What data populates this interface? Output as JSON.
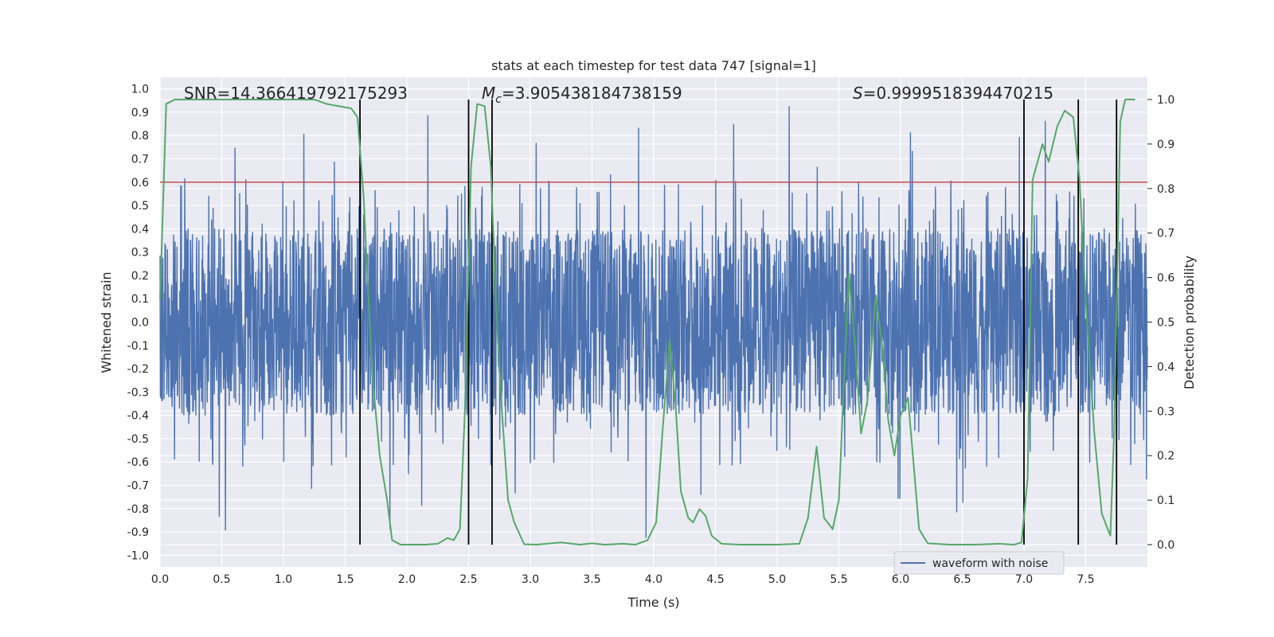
{
  "chart_data": {
    "type": "line",
    "title": "stats at each timestep for test data 747 [signal=1]",
    "xlabel": "Time (s)",
    "ylabel": "Whitened strain",
    "y2label": "Detection probability",
    "xlim": [
      0.0,
      8.0
    ],
    "ylim": [
      -1.05,
      1.05
    ],
    "y2lim": [
      -0.05,
      1.05
    ],
    "x_ticks": [
      "0.0",
      "0.5",
      "1.0",
      "1.5",
      "2.0",
      "2.5",
      "3.0",
      "3.5",
      "4.0",
      "4.5",
      "5.0",
      "5.5",
      "6.0",
      "6.5",
      "7.0",
      "7.5"
    ],
    "y_ticks": [
      "1.0",
      "0.9",
      "0.8",
      "0.7",
      "0.6",
      "0.5",
      "0.4",
      "0.3",
      "0.2",
      "0.1",
      "0.0",
      "-0.1",
      "-0.2",
      "-0.3",
      "-0.4",
      "-0.5",
      "-0.6",
      "-0.7",
      "-0.8",
      "-0.9",
      "-1.0"
    ],
    "y2_ticks": [
      "1.0",
      "0.9",
      "0.8",
      "0.7",
      "0.6",
      "0.5",
      "0.4",
      "0.3",
      "0.2",
      "0.1",
      "0.0"
    ],
    "annotations": {
      "snr": "SNR=14.366419792175293",
      "mc_symbol": "M",
      "mc_sub": "c",
      "mc_value": "=3.905438184738159",
      "s_symbol": "S",
      "s_value": "=0.9999518394470215"
    },
    "threshold": {
      "value": 0.6,
      "color": "#c44e52"
    },
    "vertical_markers_x": [
      1.62,
      2.5,
      2.69,
      7.0,
      7.44,
      7.75
    ],
    "grid": true,
    "legend_position": "lower-right",
    "series": [
      {
        "name": "waveform with noise",
        "color": "#4c72b0",
        "axis": "left",
        "style": "dense oscillating noise",
        "x_start": 0.0,
        "x_end": 8.0,
        "envelope_positive": 0.4,
        "envelope_negative": -0.4,
        "peak_max": 0.93,
        "peak_min": -0.95
      },
      {
        "color": "#55a868",
        "axis": "right",
        "points": [
          [
            0.0,
            0.55
          ],
          [
            0.05,
            0.99
          ],
          [
            0.12,
            1.0
          ],
          [
            0.3,
            1.0
          ],
          [
            0.5,
            1.0
          ],
          [
            0.7,
            1.0
          ],
          [
            0.9,
            1.0
          ],
          [
            1.1,
            1.0
          ],
          [
            1.25,
            1.0
          ],
          [
            1.35,
            0.99
          ],
          [
            1.45,
            0.985
          ],
          [
            1.55,
            0.98
          ],
          [
            1.6,
            0.96
          ],
          [
            1.65,
            0.78
          ],
          [
            1.68,
            0.6
          ],
          [
            1.72,
            0.38
          ],
          [
            1.78,
            0.2
          ],
          [
            1.84,
            0.1
          ],
          [
            1.88,
            0.01
          ],
          [
            1.95,
            0.0
          ],
          [
            2.05,
            0.0
          ],
          [
            2.15,
            0.0
          ],
          [
            2.25,
            0.002
          ],
          [
            2.33,
            0.015
          ],
          [
            2.38,
            0.01
          ],
          [
            2.43,
            0.035
          ],
          [
            2.47,
            0.3
          ],
          [
            2.52,
            0.85
          ],
          [
            2.57,
            0.99
          ],
          [
            2.63,
            0.985
          ],
          [
            2.68,
            0.85
          ],
          [
            2.72,
            0.55
          ],
          [
            2.77,
            0.3
          ],
          [
            2.82,
            0.1
          ],
          [
            2.87,
            0.05
          ],
          [
            2.95,
            0.001
          ],
          [
            3.05,
            0.0
          ],
          [
            3.25,
            0.005
          ],
          [
            3.4,
            0.0
          ],
          [
            3.5,
            0.003
          ],
          [
            3.6,
            0.0
          ],
          [
            3.75,
            0.002
          ],
          [
            3.85,
            0.0
          ],
          [
            3.95,
            0.01
          ],
          [
            4.02,
            0.05
          ],
          [
            4.07,
            0.25
          ],
          [
            4.13,
            0.46
          ],
          [
            4.18,
            0.3
          ],
          [
            4.22,
            0.12
          ],
          [
            4.28,
            0.06
          ],
          [
            4.32,
            0.05
          ],
          [
            4.37,
            0.08
          ],
          [
            4.42,
            0.065
          ],
          [
            4.47,
            0.02
          ],
          [
            4.55,
            0.002
          ],
          [
            4.7,
            0.0
          ],
          [
            5.0,
            0.0
          ],
          [
            5.18,
            0.002
          ],
          [
            5.25,
            0.06
          ],
          [
            5.32,
            0.22
          ],
          [
            5.38,
            0.06
          ],
          [
            5.45,
            0.035
          ],
          [
            5.5,
            0.1
          ],
          [
            5.58,
            0.61
          ],
          [
            5.63,
            0.45
          ],
          [
            5.68,
            0.25
          ],
          [
            5.73,
            0.32
          ],
          [
            5.8,
            0.56
          ],
          [
            5.85,
            0.45
          ],
          [
            5.9,
            0.28
          ],
          [
            5.95,
            0.2
          ],
          [
            6.0,
            0.29
          ],
          [
            6.06,
            0.33
          ],
          [
            6.1,
            0.2
          ],
          [
            6.15,
            0.035
          ],
          [
            6.22,
            0.003
          ],
          [
            6.4,
            0.0
          ],
          [
            6.6,
            0.0
          ],
          [
            6.8,
            0.002
          ],
          [
            6.92,
            0.0
          ],
          [
            6.98,
            0.005
          ],
          [
            7.03,
            0.15
          ],
          [
            7.07,
            0.82
          ],
          [
            7.15,
            0.9
          ],
          [
            7.2,
            0.86
          ],
          [
            7.27,
            0.94
          ],
          [
            7.33,
            0.975
          ],
          [
            7.4,
            0.96
          ],
          [
            7.45,
            0.82
          ],
          [
            7.5,
            0.55
          ],
          [
            7.57,
            0.25
          ],
          [
            7.63,
            0.07
          ],
          [
            7.7,
            0.02
          ],
          [
            7.73,
            0.25
          ],
          [
            7.78,
            0.95
          ],
          [
            7.82,
            1.0
          ],
          [
            7.9,
            1.0
          ]
        ]
      }
    ]
  }
}
